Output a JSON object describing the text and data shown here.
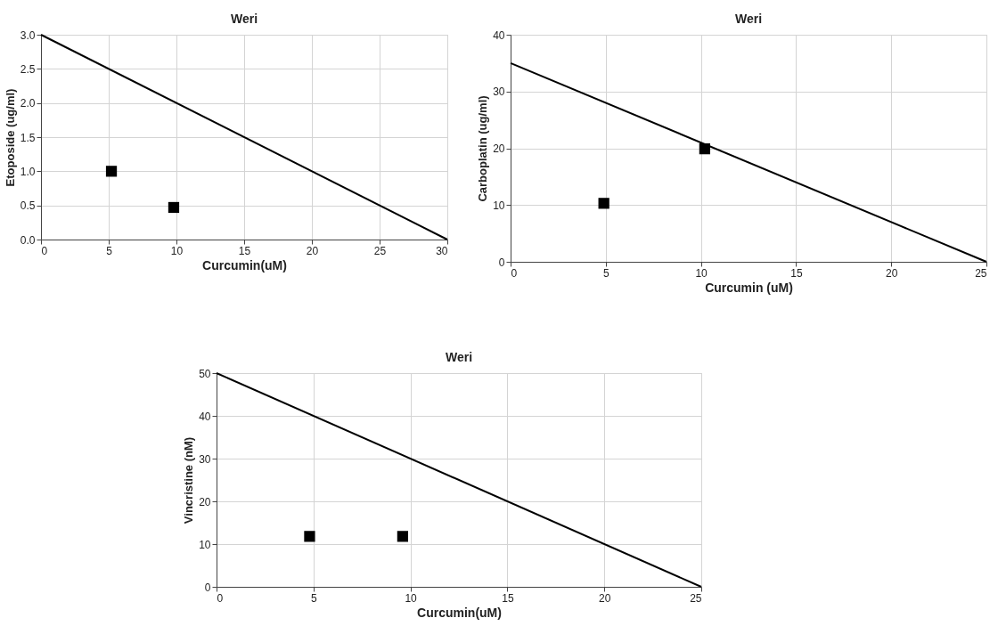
{
  "chart_data": [
    {
      "type": "scatter",
      "title": "Weri",
      "xlabel": "Curcumin(uM)",
      "ylabel": "Etoposide (ug/ml)",
      "xlim": [
        0,
        30
      ],
      "ylim": [
        0,
        3
      ],
      "xticks": [
        0,
        5,
        10,
        15,
        20,
        25,
        30
      ],
      "yticks": [
        {
          "value": 0,
          "label": "0.0"
        },
        0.5,
        {
          "value": 1,
          "label": "1.0"
        },
        1.5,
        {
          "value": 2,
          "label": "2.0"
        },
        2.5,
        {
          "value": 3,
          "label": "3.0"
        }
      ],
      "grid": true,
      "series": [
        {
          "type": "line",
          "color": "#000000",
          "x": [
            0,
            30
          ],
          "values": [
            3,
            0
          ],
          "line_style": "solid",
          "marker": "none"
        },
        {
          "type": "scatter",
          "color": "#000000",
          "x": [
            5.2,
            9.8
          ],
          "values": [
            1.0,
            0.47
          ],
          "marker": "square"
        }
      ]
    },
    {
      "type": "scatter",
      "title": "Weri",
      "xlabel": "Curcumin (uM)",
      "ylabel": "Carboplatin  (ug/ml)",
      "xlim": [
        0,
        25
      ],
      "ylim": [
        0,
        40
      ],
      "xticks": [
        0,
        5,
        10,
        15,
        20,
        25
      ],
      "yticks": [
        0,
        10,
        20,
        30,
        40
      ],
      "grid": true,
      "series": [
        {
          "type": "line",
          "color": "#000000",
          "x": [
            0,
            25
          ],
          "values": [
            35,
            0
          ],
          "line_style": "solid",
          "marker": "none"
        },
        {
          "type": "scatter",
          "color": "#000000",
          "x": [
            4.9,
            10.2
          ],
          "values": [
            10.3,
            19.9
          ],
          "marker": "square"
        }
      ]
    },
    {
      "type": "scatter",
      "title": "Weri",
      "xlabel": "Curcumin(uM)",
      "ylabel": "Vincristine (nM)",
      "xlim": [
        0,
        25
      ],
      "ylim": [
        0,
        50
      ],
      "xticks": [
        0,
        5,
        10,
        15,
        20,
        25
      ],
      "yticks": [
        0,
        10,
        20,
        30,
        40,
        50
      ],
      "grid": true,
      "series": [
        {
          "type": "line",
          "color": "#000000",
          "x": [
            0,
            25
          ],
          "values": [
            50,
            0
          ],
          "line_style": "solid",
          "marker": "none"
        },
        {
          "type": "scatter",
          "color": "#000000",
          "x": [
            4.8,
            9.6
          ],
          "values": [
            11.8,
            11.8
          ],
          "marker": "square"
        }
      ]
    }
  ]
}
